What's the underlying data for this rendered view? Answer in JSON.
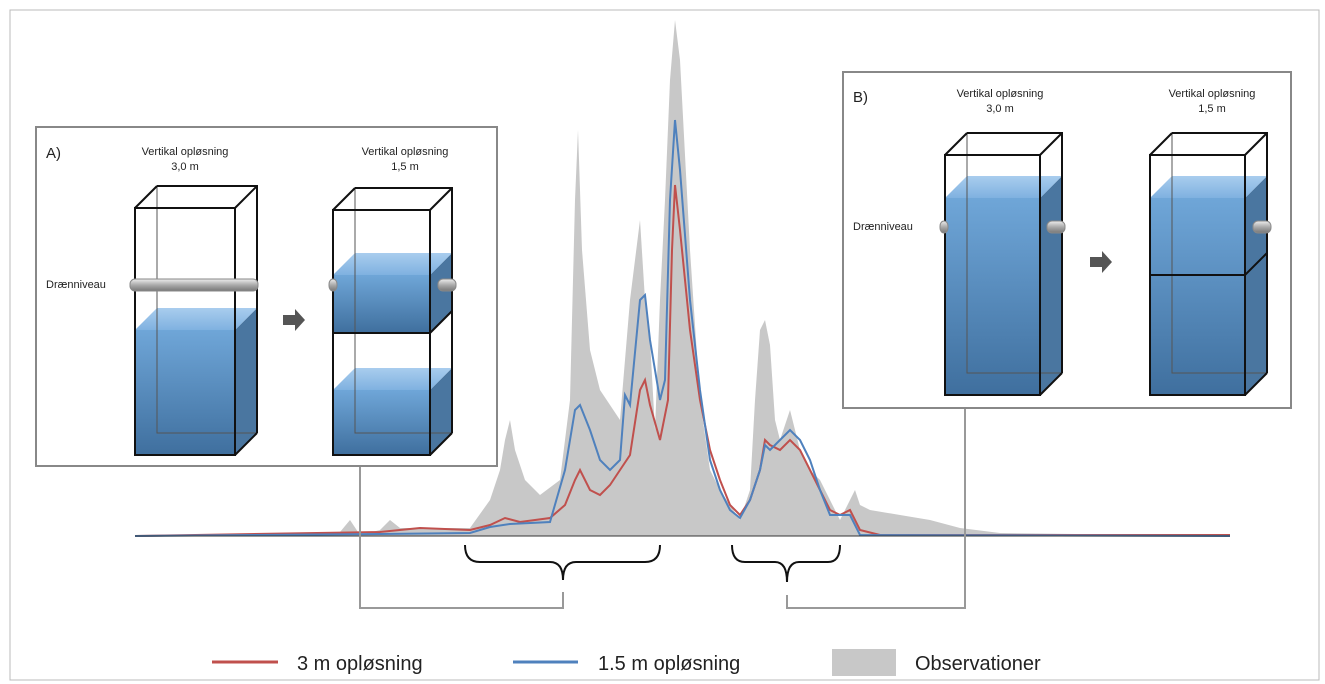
{
  "panel_a": {
    "label": "A)",
    "columns": [
      {
        "title": "Vertikal opløsning",
        "value": "3,0 m"
      },
      {
        "title": "Vertikal opløsning",
        "value": "1,5 m"
      }
    ],
    "drain_label": "Drænniveau"
  },
  "panel_b": {
    "label": "B)",
    "columns": [
      {
        "title": "Vertikal opløsning",
        "value": "3,0 m"
      },
      {
        "title": "Vertikal opløsning",
        "value": "1,5 m"
      }
    ],
    "drain_label": "Drænniveau"
  },
  "legend": {
    "items": [
      "3 m opløsning",
      "1.5 m opløsning",
      "Observationer"
    ]
  }
}
